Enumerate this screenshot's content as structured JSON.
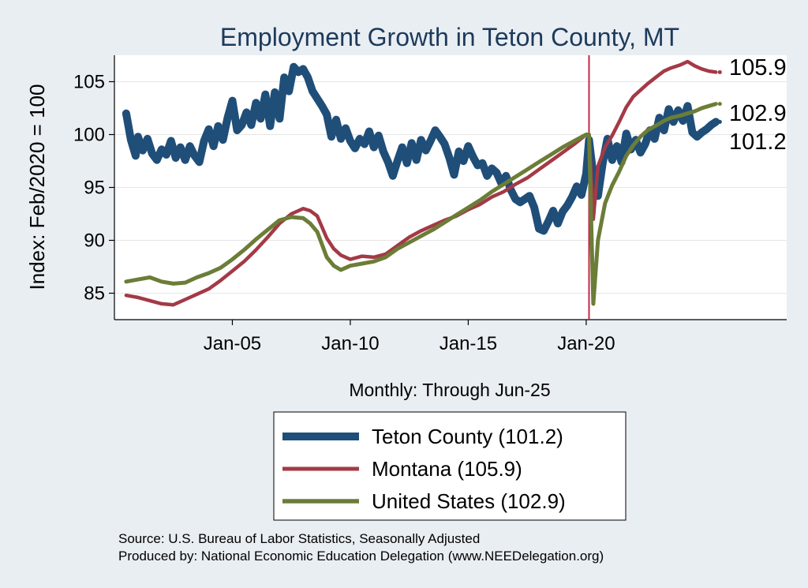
{
  "chart_data": {
    "type": "line",
    "title": "Employment Growth in Teton  County, MT",
    "xlabel": "Monthly: Through Jun-25",
    "ylabel": "Index: Feb/2020 = 100",
    "x_ticks": [
      "Jan-05",
      "Jan-10",
      "Jan-15",
      "Jan-20"
    ],
    "x_tick_values": [
      2005,
      2010,
      2015,
      2020
    ],
    "y_ticks": [
      85,
      90,
      95,
      100,
      105
    ],
    "xlim": [
      2000.0,
      2028.5
    ],
    "ylim": [
      82.5,
      107.5
    ],
    "vline": {
      "x": 2020.12,
      "color": "#c0294a"
    },
    "series": [
      {
        "name": "Teton  County (101.2)",
        "end_label": "101.2",
        "color": "#1f4e79",
        "x": [
          2000.5,
          2000.7,
          2000.9,
          2001.0,
          2001.2,
          2001.4,
          2001.6,
          2001.8,
          2002.0,
          2002.2,
          2002.4,
          2002.6,
          2002.8,
          2003.0,
          2003.2,
          2003.4,
          2003.6,
          2003.8,
          2004.0,
          2004.2,
          2004.4,
          2004.6,
          2004.8,
          2005.0,
          2005.2,
          2005.4,
          2005.6,
          2005.8,
          2006.0,
          2006.2,
          2006.4,
          2006.6,
          2006.8,
          2007.0,
          2007.2,
          2007.4,
          2007.6,
          2007.8,
          2008.0,
          2008.2,
          2008.4,
          2008.6,
          2008.8,
          2009.0,
          2009.2,
          2009.4,
          2009.6,
          2009.8,
          2010.0,
          2010.2,
          2010.4,
          2010.6,
          2010.8,
          2011.0,
          2011.2,
          2011.4,
          2011.6,
          2011.8,
          2012.0,
          2012.2,
          2012.4,
          2012.6,
          2012.8,
          2013.0,
          2013.2,
          2013.4,
          2013.6,
          2013.8,
          2014.0,
          2014.2,
          2014.4,
          2014.6,
          2014.8,
          2015.0,
          2015.2,
          2015.4,
          2015.6,
          2015.8,
          2016.0,
          2016.2,
          2016.4,
          2016.6,
          2016.8,
          2017.0,
          2017.2,
          2017.4,
          2017.6,
          2017.8,
          2018.0,
          2018.2,
          2018.4,
          2018.6,
          2018.8,
          2019.0,
          2019.2,
          2019.4,
          2019.6,
          2019.8,
          2020.0,
          2020.12,
          2020.3,
          2020.5,
          2020.7,
          2020.9,
          2021.1,
          2021.3,
          2021.5,
          2021.7,
          2021.9,
          2022.1,
          2022.3,
          2022.5,
          2022.7,
          2022.9,
          2023.1,
          2023.3,
          2023.5,
          2023.7,
          2023.9,
          2024.1,
          2024.3,
          2024.5,
          2024.7,
          2024.9,
          2025.1,
          2025.3,
          2025.5
        ],
        "values": [
          102.0,
          99.5,
          98.0,
          99.8,
          98.5,
          99.6,
          98.2,
          97.6,
          98.6,
          98.1,
          99.4,
          97.8,
          98.8,
          97.6,
          98.9,
          98.0,
          97.4,
          99.4,
          100.5,
          98.9,
          100.8,
          99.5,
          101.6,
          103.2,
          100.4,
          100.9,
          102.1,
          100.9,
          103.0,
          101.5,
          103.8,
          100.8,
          104.0,
          101.5,
          105.4,
          104.1,
          106.4,
          105.9,
          106.2,
          105.4,
          104.1,
          103.4,
          102.7,
          101.9,
          99.8,
          101.4,
          99.6,
          100.6,
          99.4,
          98.7,
          99.6,
          99.1,
          100.3,
          98.8,
          99.9,
          98.4,
          97.4,
          96.1,
          97.5,
          98.8,
          97.3,
          99.2,
          97.6,
          99.5,
          98.5,
          99.4,
          100.4,
          99.8,
          99.1,
          97.8,
          96.2,
          98.4,
          97.5,
          98.9,
          97.9,
          97.1,
          97.3,
          96.1,
          96.8,
          96.4,
          95.4,
          96.1,
          94.8,
          93.9,
          93.6,
          93.9,
          94.2,
          93.1,
          91.1,
          90.9,
          91.8,
          92.8,
          91.6,
          92.7,
          93.3,
          94.1,
          95.1,
          94.3,
          96.3,
          99.5,
          96.1,
          94.2,
          97.3,
          99.6,
          97.6,
          98.9,
          97.4,
          100.1,
          98.6,
          99.5,
          98.3,
          99.1,
          100.4,
          99.6,
          101.6,
          100.4,
          102.4,
          101.2,
          102.3,
          101.3,
          102.7,
          100.2,
          99.8,
          100.2,
          100.5,
          100.9,
          101.2
        ]
      },
      {
        "name": "Montana (105.9)",
        "end_label": "105.9",
        "color": "#a33a46",
        "x": [
          2000.5,
          2001.0,
          2001.5,
          2002.0,
          2002.5,
          2003.0,
          2003.5,
          2004.0,
          2004.5,
          2005.0,
          2005.5,
          2006.0,
          2006.5,
          2007.0,
          2007.5,
          2008.0,
          2008.3,
          2008.6,
          2009.0,
          2009.3,
          2009.6,
          2010.0,
          2010.5,
          2011.0,
          2011.5,
          2012.0,
          2012.5,
          2013.0,
          2013.5,
          2014.0,
          2014.5,
          2015.0,
          2015.5,
          2016.0,
          2016.5,
          2017.0,
          2017.5,
          2018.0,
          2018.5,
          2019.0,
          2019.5,
          2020.0,
          2020.12,
          2020.3,
          2020.5,
          2020.8,
          2021.1,
          2021.4,
          2021.7,
          2022.0,
          2022.3,
          2022.6,
          2023.0,
          2023.3,
          2023.6,
          2024.0,
          2024.3,
          2024.6,
          2024.9,
          2025.2,
          2025.5
        ],
        "values": [
          84.8,
          84.6,
          84.3,
          84.0,
          83.9,
          84.4,
          84.9,
          85.4,
          86.2,
          87.1,
          88.0,
          89.1,
          90.3,
          91.6,
          92.5,
          93.0,
          92.8,
          92.3,
          90.2,
          89.2,
          88.6,
          88.2,
          88.5,
          88.4,
          88.7,
          89.5,
          90.3,
          90.9,
          91.4,
          91.9,
          92.3,
          92.9,
          93.4,
          94.1,
          94.6,
          95.3,
          95.9,
          96.7,
          97.5,
          98.3,
          99.1,
          100.0,
          100.0,
          92.0,
          97.0,
          98.8,
          99.9,
          101.2,
          102.6,
          103.6,
          104.2,
          104.8,
          105.5,
          106.0,
          106.3,
          106.6,
          106.9,
          106.5,
          106.2,
          106.0,
          105.9
        ]
      },
      {
        "name": "United States (102.9)",
        "end_label": "102.9",
        "color": "#6b7d37",
        "x": [
          2000.5,
          2001.0,
          2001.5,
          2002.0,
          2002.5,
          2003.0,
          2003.5,
          2004.0,
          2004.5,
          2005.0,
          2005.5,
          2006.0,
          2006.5,
          2007.0,
          2007.5,
          2008.0,
          2008.3,
          2008.6,
          2009.0,
          2009.3,
          2009.6,
          2010.0,
          2010.5,
          2011.0,
          2011.5,
          2012.0,
          2012.5,
          2013.0,
          2013.5,
          2014.0,
          2014.5,
          2015.0,
          2015.5,
          2016.0,
          2016.5,
          2017.0,
          2017.5,
          2018.0,
          2018.5,
          2019.0,
          2019.5,
          2020.0,
          2020.12,
          2020.3,
          2020.5,
          2020.8,
          2021.1,
          2021.4,
          2021.7,
          2022.0,
          2022.3,
          2022.6,
          2023.0,
          2023.3,
          2023.6,
          2024.0,
          2024.3,
          2024.6,
          2024.9,
          2025.2,
          2025.5
        ],
        "values": [
          86.1,
          86.3,
          86.5,
          86.1,
          85.9,
          86.0,
          86.5,
          86.9,
          87.4,
          88.2,
          89.1,
          90.1,
          91.0,
          91.9,
          92.2,
          92.1,
          91.6,
          90.8,
          88.4,
          87.6,
          87.2,
          87.6,
          87.8,
          88.0,
          88.4,
          89.2,
          89.8,
          90.4,
          91.0,
          91.7,
          92.4,
          93.1,
          93.8,
          94.6,
          95.3,
          96.0,
          96.7,
          97.4,
          98.1,
          98.8,
          99.4,
          100.0,
          100.0,
          84.0,
          90.0,
          93.5,
          95.2,
          96.5,
          98.0,
          99.0,
          99.8,
          100.4,
          100.9,
          101.3,
          101.6,
          101.8,
          102.0,
          102.2,
          102.5,
          102.7,
          102.9
        ]
      }
    ],
    "legend_position": "bottom"
  },
  "source_line": "Source: U.S. Bureau of Labor Statistics, Seasonally Adjusted",
  "produced_line": "Produced by: National Economic Education Delegation (www.NEEDelegation.org)"
}
